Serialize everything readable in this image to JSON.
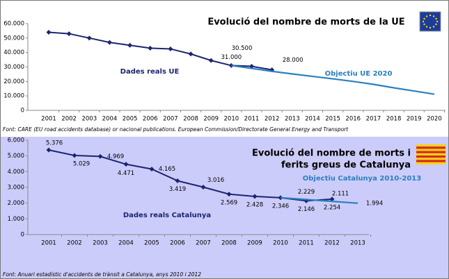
{
  "chart_data": [
    {
      "type": "line",
      "title": "Evolució del nombre de morts de la UE",
      "source": "Font: CARE (EU road accidents database) or nacional publications. European Commission/Directorate General Energy and Transport",
      "categories": [
        "2001",
        "2002",
        "2003",
        "2004",
        "2005",
        "2006",
        "2007",
        "2008",
        "2009",
        "2010",
        "2011",
        "2012",
        "2013",
        "2014",
        "2015",
        "2016",
        "2017",
        "2018",
        "2019",
        "2020"
      ],
      "ylim": [
        0,
        60000
      ],
      "yticks": [
        0,
        {
          "value": 10000,
          "label": "10.000"
        },
        {
          "value": 20000,
          "label": "20.000"
        },
        {
          "value": 30000,
          "label": "30.000"
        },
        {
          "value": 40000,
          "label": "40.000"
        },
        {
          "value": 50000,
          "label": "50.000"
        },
        {
          "value": 60000,
          "label": "60.000"
        }
      ],
      "series": [
        {
          "name": "Dades reals UE",
          "color": "#1c2570",
          "values": [
            54000,
            53000,
            50000,
            47000,
            45000,
            43000,
            42500,
            39000,
            34500,
            31000,
            30500,
            28000,
            null,
            null,
            null,
            null,
            null,
            null,
            null,
            null
          ],
          "value_labels": [
            null,
            null,
            null,
            null,
            null,
            null,
            null,
            null,
            null,
            "31.000",
            "30.500",
            "28.000",
            null,
            null,
            null,
            null,
            null,
            null,
            null,
            null
          ]
        },
        {
          "name": "Objectiu UE 2020",
          "color": "#2b7fc0",
          "values": [
            null,
            null,
            null,
            null,
            null,
            null,
            null,
            null,
            null,
            31000,
            29000,
            27000,
            25200,
            23500,
            21800,
            20000,
            18000,
            15600,
            13400,
            11200
          ]
        }
      ]
    },
    {
      "type": "line",
      "title": [
        "Evolució del nombre de morts i",
        "ferits greus de Catalunya"
      ],
      "source": "Font: Anuari estadístic d'accidents de trànsit a Catalunya, anys 2010 i 2012",
      "categories": [
        "2001",
        "2002",
        "2003",
        "2004",
        "2005",
        "2006",
        "2007",
        "2008",
        "2009",
        "2010",
        "2011",
        "2012",
        "2013"
      ],
      "ylim": [
        0,
        6000
      ],
      "yticks": [
        0,
        {
          "value": 1000,
          "label": "1.000"
        },
        {
          "value": 2000,
          "label": "2.000"
        },
        {
          "value": 3000,
          "label": "3.000"
        },
        {
          "value": 4000,
          "label": "4.000"
        },
        {
          "value": 5000,
          "label": "5.000"
        },
        {
          "value": 6000,
          "label": "6.000"
        }
      ],
      "series": [
        {
          "name": "Dades reals Catalunya",
          "color": "#1c2570",
          "values": [
            5376,
            5029,
            4969,
            4471,
            4165,
            3419,
            3016,
            2569,
            2428,
            2346,
            2146,
            2254,
            null
          ],
          "value_labels": [
            "5.376",
            "5.029",
            "4.969",
            "4.471",
            "4.165",
            "3.419",
            "3.016",
            "2.569",
            "2.428",
            "2.346",
            "2.146",
            "2.254",
            null
          ]
        },
        {
          "name": "Objectiu Catalunya 2010-2013",
          "color": "#2b7fc0",
          "values": [
            null,
            null,
            null,
            null,
            null,
            null,
            null,
            null,
            null,
            2346,
            2229,
            2111,
            1994
          ],
          "value_labels": [
            null,
            null,
            null,
            null,
            null,
            null,
            null,
            null,
            null,
            null,
            "2.229",
            "2.111",
            "1.994"
          ]
        }
      ]
    }
  ]
}
